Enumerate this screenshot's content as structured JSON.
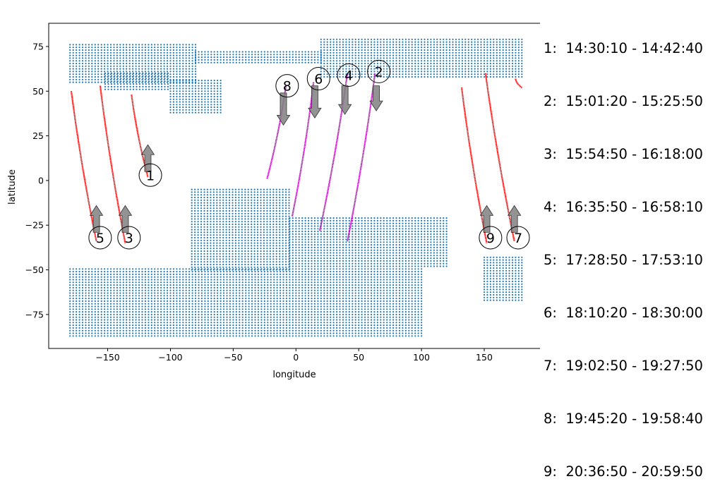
{
  "chart_data": {
    "type": "scatter",
    "title": "",
    "xlabel": "longitude",
    "ylabel": "latitude",
    "xlim": [
      -197,
      195
    ],
    "ylim": [
      -94,
      88
    ],
    "xticks": [
      -150,
      -100,
      -50,
      0,
      50,
      100,
      150
    ],
    "yticks": [
      -75,
      -50,
      -25,
      0,
      25,
      50,
      75
    ],
    "tick_labels_x": [
      "−150",
      "−100",
      "−50",
      "0",
      "50",
      "100",
      "150"
    ],
    "tick_labels_y": [
      "−75",
      "−50",
      "−25",
      "0",
      "25",
      "50",
      "75"
    ],
    "grid": false,
    "colors": {
      "grid_points": "#1f77b4",
      "descending_track": "#ff0000",
      "ascending_track": "#bf00bf",
      "arrow": "#808080"
    },
    "grid_points_regions": [
      {
        "lon": [
          -180,
          -80
        ],
        "lat": [
          55,
          77
        ]
      },
      {
        "lon": [
          -80,
          20
        ],
        "lat": [
          66,
          72
        ]
      },
      {
        "lon": [
          20,
          180
        ],
        "lat": [
          58,
          79
        ]
      },
      {
        "lon": [
          -152,
          -100
        ],
        "lat": [
          51,
          60
        ]
      },
      {
        "lon": [
          -100,
          -60
        ],
        "lat": [
          38,
          56
        ]
      },
      {
        "lon": [
          -83,
          -5
        ],
        "lat": [
          -5,
          -50
        ]
      },
      {
        "lon": [
          -5,
          120
        ],
        "lat": [
          -20,
          -48
        ]
      },
      {
        "lon": [
          -180,
          100
        ],
        "lat": [
          -49,
          -87
        ]
      },
      {
        "lon": [
          150,
          180
        ],
        "lat": [
          -43,
          -67
        ]
      }
    ],
    "tracks": [
      {
        "id": "1",
        "direction": "descending",
        "start": [
          -131,
          48
        ],
        "end": [
          -118,
          2
        ]
      },
      {
        "id": "3",
        "direction": "descending",
        "start": [
          -156,
          53
        ],
        "end": [
          -136,
          -35
        ]
      },
      {
        "id": "5",
        "direction": "descending",
        "start": [
          -179,
          50
        ],
        "end": [
          -159,
          -34
        ]
      },
      {
        "id": "7",
        "direction": "descending",
        "start": [
          151,
          60
        ],
        "end": [
          174,
          -34
        ]
      },
      {
        "id": "7b",
        "direction": "descending",
        "start": [
          175,
          57
        ],
        "end": [
          180,
          52
        ]
      },
      {
        "id": "9",
        "direction": "descending",
        "start": [
          132,
          52
        ],
        "end": [
          152,
          -35
        ]
      },
      {
        "id": "2",
        "direction": "ascending",
        "start": [
          41,
          -34
        ],
        "end": [
          63,
          60
        ]
      },
      {
        "id": "4",
        "direction": "ascending",
        "start": [
          19,
          -28
        ],
        "end": [
          41,
          60
        ]
      },
      {
        "id": "6",
        "direction": "ascending",
        "start": [
          -3,
          -20
        ],
        "end": [
          14,
          55
        ]
      },
      {
        "id": "8",
        "direction": "ascending",
        "start": [
          -23,
          1
        ],
        "end": [
          -8,
          53
        ]
      }
    ],
    "markers": [
      {
        "label": "1",
        "x": -116,
        "y": 3,
        "arrow": "up",
        "arrow_x": -118,
        "arrow_y0": 5,
        "arrow_y1": 20
      },
      {
        "label": "2",
        "x": 66,
        "y": 61,
        "arrow": "down",
        "arrow_x": 64,
        "arrow_y0": 53,
        "arrow_y1": 39
      },
      {
        "label": "3",
        "x": -133,
        "y": -32,
        "arrow": "up",
        "arrow_x": -136,
        "arrow_y0": -29,
        "arrow_y1": -14
      },
      {
        "label": "4",
        "x": 42,
        "y": 59,
        "arrow": "down",
        "arrow_x": 39,
        "arrow_y0": 53,
        "arrow_y1": 37
      },
      {
        "label": "5",
        "x": -156,
        "y": -32,
        "arrow": "up",
        "arrow_x": -159,
        "arrow_y0": -29,
        "arrow_y1": -14
      },
      {
        "label": "6",
        "x": 18,
        "y": 57,
        "arrow": "down",
        "arrow_x": 15,
        "arrow_y0": 53,
        "arrow_y1": 35
      },
      {
        "label": "7",
        "x": 177,
        "y": -32,
        "arrow": "up",
        "arrow_x": 174,
        "arrow_y0": -29,
        "arrow_y1": -14
      },
      {
        "label": "8",
        "x": -7,
        "y": 53,
        "arrow": "down",
        "arrow_x": -10,
        "arrow_y0": 49,
        "arrow_y1": 31
      },
      {
        "label": "9",
        "x": 155,
        "y": -32,
        "arrow": "up",
        "arrow_x": 152,
        "arrow_y0": -29,
        "arrow_y1": -14
      }
    ],
    "legend": [
      "1:  14:30:10 - 14:42:40",
      "2:  15:01:20 - 15:25:50",
      "3:  15:54:50 - 16:18:00",
      "4:  16:35:50 - 16:58:10",
      "5:  17:28:50 - 17:53:10",
      "6:  18:10:20 - 18:30:00",
      "7:  19:02:50 - 19:27:50",
      "8:  19:45:20 - 19:58:40",
      "9:  20:36:50 - 20:59:50"
    ]
  }
}
